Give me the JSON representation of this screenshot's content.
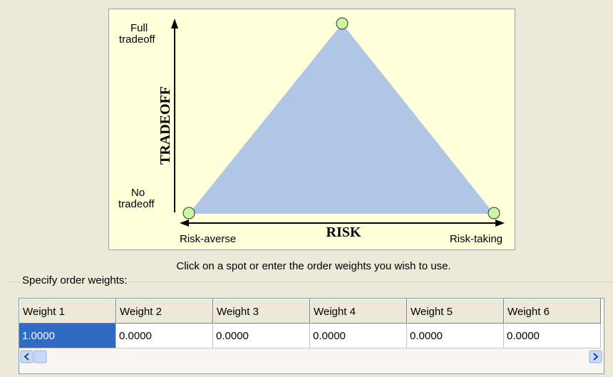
{
  "diagram": {
    "y_axis": {
      "title": "TRADEOFF",
      "top_label": [
        "Full",
        "tradeoff"
      ],
      "bottom_label": [
        "No",
        "tradeoff"
      ]
    },
    "x_axis": {
      "title": "RISK",
      "left_label": "Risk-averse",
      "right_label": "Risk-taking"
    }
  },
  "instruction": "Click on a spot or enter the order weights you wish to use.",
  "group": {
    "title": "Specify order weights:"
  },
  "table": {
    "columns": [
      "Weight 1",
      "Weight 2",
      "Weight 3",
      "Weight 4",
      "Weight 5",
      "Weight 6"
    ],
    "rows": [
      [
        "1.0000",
        "0.0000",
        "0.0000",
        "0.0000",
        "0.0000",
        "0.0000"
      ]
    ]
  }
}
